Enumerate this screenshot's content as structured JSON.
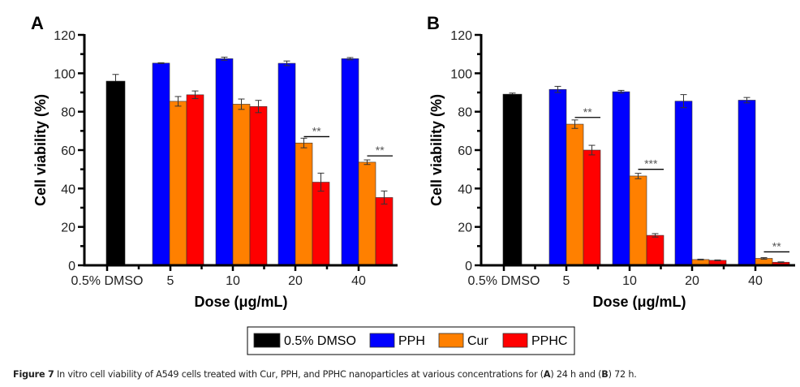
{
  "figure": {
    "caption_label": "Figure 7",
    "caption_text_1": " In vitro cell viability of A549 cells treated with Cur, PPH, and PPHC nanoparticles at various concentrations for (",
    "caption_panel_a": "A",
    "caption_text_2": ") 24 h and (",
    "caption_panel_b": "B",
    "caption_text_3": ") 72 h."
  },
  "legend": {
    "items": [
      {
        "label": "0.5% DMSO",
        "color": "#000000"
      },
      {
        "label": "PPH",
        "color": "#0000ff"
      },
      {
        "label": "Cur",
        "color": "#ff8000"
      },
      {
        "label": "PPHC",
        "color": "#ff0000"
      }
    ]
  },
  "chart_data": [
    {
      "type": "bar",
      "panel": "A",
      "title": "",
      "xlabel": "Dose (μg/mL)",
      "ylabel": "Cell viability (%)",
      "ylim": [
        0,
        120
      ],
      "yticks": [
        0,
        20,
        40,
        60,
        80,
        100,
        120
      ],
      "categories": [
        "0.5% DMSO",
        "5",
        "10",
        "20",
        "40"
      ],
      "control": {
        "name": "0.5% DMSO",
        "value": 95.9,
        "error": 3.5,
        "color": "#000000"
      },
      "series": [
        {
          "name": "PPH",
          "color": "#0000ff",
          "values": [
            null,
            105.3,
            107.6,
            105.2,
            107.6
          ],
          "errors": [
            null,
            0.2,
            0.8,
            1.2,
            0.6
          ]
        },
        {
          "name": "Cur",
          "color": "#ff8000",
          "values": [
            null,
            85.4,
            83.9,
            63.7,
            53.7
          ],
          "errors": [
            null,
            2.5,
            2.7,
            2.5,
            1.2
          ]
        },
        {
          "name": "PPHC",
          "color": "#ff0000",
          "values": [
            null,
            88.8,
            82.7,
            43.3,
            35.3
          ],
          "errors": [
            null,
            2.0,
            3.2,
            4.7,
            3.4
          ]
        }
      ],
      "annotations": [
        {
          "text": "**",
          "category": "20",
          "between": [
            "Cur",
            "PPHC"
          ],
          "y": 67
        },
        {
          "text": "**",
          "category": "40",
          "between": [
            "Cur",
            "PPHC"
          ],
          "y": 57
        }
      ],
      "legend_position": "bottom-center"
    },
    {
      "type": "bar",
      "panel": "B",
      "title": "",
      "xlabel": "Dose (μg/mL)",
      "ylabel": "Cell viability (%)",
      "ylim": [
        0,
        120
      ],
      "yticks": [
        0,
        20,
        40,
        60,
        80,
        100,
        120
      ],
      "categories": [
        "0.5% DMSO",
        "5",
        "10",
        "20",
        "40"
      ],
      "control": {
        "name": "0.5% DMSO",
        "value": 89.1,
        "error": 0.6,
        "color": "#000000"
      },
      "series": [
        {
          "name": "PPH",
          "color": "#0000ff",
          "values": [
            null,
            91.6,
            90.4,
            85.5,
            86.0
          ],
          "errors": [
            null,
            1.6,
            0.7,
            3.4,
            1.4
          ]
        },
        {
          "name": "Cur",
          "color": "#ff8000",
          "values": [
            null,
            73.5,
            46.5,
            3.0,
            3.6
          ],
          "errors": [
            null,
            2.2,
            1.4,
            0.2,
            0.4
          ]
        },
        {
          "name": "PPHC",
          "color": "#ff0000",
          "values": [
            null,
            60.0,
            15.6,
            2.6,
            1.6
          ],
          "errors": [
            null,
            2.5,
            0.9,
            0.2,
            0.2
          ]
        }
      ],
      "annotations": [
        {
          "text": "**",
          "category": "5",
          "between": [
            "Cur",
            "PPHC"
          ],
          "y": 77
        },
        {
          "text": "***",
          "category": "10",
          "between": [
            "Cur",
            "PPHC"
          ],
          "y": 50
        },
        {
          "text": "**",
          "category": "40",
          "between": [
            "Cur",
            "PPHC"
          ],
          "y": 7
        }
      ],
      "legend_position": "bottom-center"
    }
  ]
}
